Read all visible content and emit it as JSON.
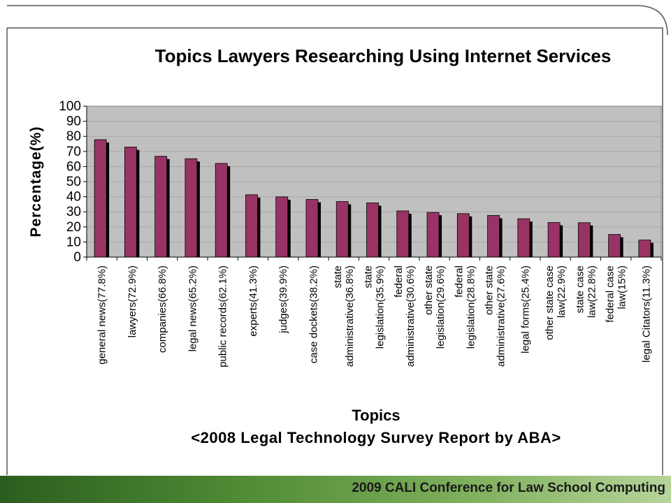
{
  "footer": {
    "text": "2009 CALI Conference for Law School Computing"
  },
  "colors": {
    "bar": "#993366",
    "plot_bg": "#c0c0c0",
    "footer_green": "#4f8a34"
  },
  "chart_data": {
    "type": "bar",
    "title": "Topics Lawyers Researching Using Internet Services",
    "xlabel": "Topics",
    "subtitle": "<2008 Legal Technology Survey Report by ABA>",
    "ylabel": "Percentage(%)",
    "ylim": [
      0,
      100
    ],
    "yticks": [
      "0",
      "10",
      "20",
      "30",
      "40",
      "50",
      "60",
      "70",
      "80",
      "90",
      "100"
    ],
    "grid": true,
    "legend": "none",
    "categories": [
      [
        "general news(77.8%)"
      ],
      [
        "lawyers(72.9%)"
      ],
      [
        "companies(66.8%)"
      ],
      [
        "legal news(65.2%)"
      ],
      [
        "public records(62.1%)"
      ],
      [
        "experts(41.3%)"
      ],
      [
        "judges(39.9%)"
      ],
      [
        "case dockets(38.2%)"
      ],
      [
        "state",
        "administrative(36.8%)"
      ],
      [
        "state",
        "legislation(35.9%)"
      ],
      [
        "federal",
        "administrative(30.6%)"
      ],
      [
        "other state",
        "legislation(29.6%)"
      ],
      [
        "federal",
        "legislation(28.8%)"
      ],
      [
        "other state",
        "administrative(27.6%)"
      ],
      [
        "legal forms(25.4%)"
      ],
      [
        "other state case",
        "law(22.9%)"
      ],
      [
        "state case",
        "law(22.8%)"
      ],
      [
        "federal case",
        "law(15%)"
      ],
      [
        "legal Citators(11.3%)"
      ]
    ],
    "values": [
      77.8,
      72.9,
      66.8,
      65.2,
      62.1,
      41.3,
      39.9,
      38.2,
      36.8,
      35.9,
      30.6,
      29.6,
      28.8,
      27.6,
      25.4,
      22.9,
      22.8,
      15,
      11.3
    ]
  }
}
